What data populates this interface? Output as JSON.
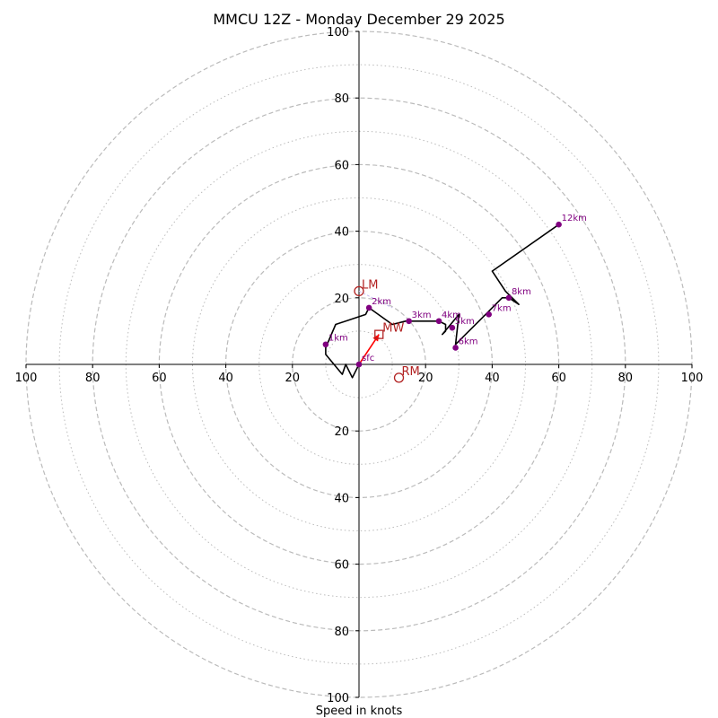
{
  "chart_data": {
    "type": "hodograph",
    "title": "MMCU 12Z - Monday December 29 2025",
    "xlabel": "Speed in knots",
    "ylabel": "",
    "xlim": [
      -100,
      100
    ],
    "ylim": [
      -100,
      100
    ],
    "rings": {
      "dashed": [
        20,
        40,
        60,
        80,
        100
      ],
      "dotted": [
        10,
        30,
        50,
        70,
        90
      ]
    },
    "x_tick_labels": [
      {
        "value": -100,
        "label": "100"
      },
      {
        "value": -80,
        "label": "80"
      },
      {
        "value": -60,
        "label": "60"
      },
      {
        "value": -40,
        "label": "40"
      },
      {
        "value": -20,
        "label": "20"
      },
      {
        "value": 20,
        "label": "20"
      },
      {
        "value": 40,
        "label": "40"
      },
      {
        "value": 60,
        "label": "60"
      },
      {
        "value": 80,
        "label": "80"
      },
      {
        "value": 100,
        "label": "100"
      }
    ],
    "y_tick_labels": [
      {
        "value": 100,
        "label": "100"
      },
      {
        "value": 80,
        "label": "80"
      },
      {
        "value": 60,
        "label": "60"
      },
      {
        "value": 40,
        "label": "40"
      },
      {
        "value": 20,
        "label": "20"
      },
      {
        "value": -20,
        "label": "20"
      },
      {
        "value": -40,
        "label": "40"
      },
      {
        "value": -60,
        "label": "60"
      },
      {
        "value": -80,
        "label": "80"
      },
      {
        "value": -100,
        "label": "100"
      }
    ],
    "hodograph_trace": [
      [
        0,
        0
      ],
      [
        -2,
        -4
      ],
      [
        -4,
        0
      ],
      [
        -5,
        -3
      ],
      [
        -10,
        3
      ],
      [
        -10,
        5
      ],
      [
        -7,
        12
      ],
      [
        2,
        15
      ],
      [
        3,
        17
      ],
      [
        10,
        12
      ],
      [
        14,
        13
      ],
      [
        24,
        13
      ],
      [
        26,
        12
      ],
      [
        26,
        10
      ],
      [
        25,
        9
      ],
      [
        30,
        15
      ],
      [
        29,
        6
      ],
      [
        38,
        15
      ],
      [
        43,
        20
      ],
      [
        45,
        20
      ],
      [
        48,
        18
      ],
      [
        44,
        22
      ],
      [
        40,
        28
      ],
      [
        60,
        42
      ]
    ],
    "height_markers": [
      {
        "label": "sfc",
        "u": 0,
        "v": 0
      },
      {
        "label": "1km",
        "u": -10,
        "v": 6
      },
      {
        "label": "2km",
        "u": 3,
        "v": 17
      },
      {
        "label": "3km",
        "u": 15,
        "v": 13
      },
      {
        "label": "4km",
        "u": 24,
        "v": 13
      },
      {
        "label": "5km",
        "u": 28,
        "v": 11
      },
      {
        "label": "6km",
        "u": 29,
        "v": 5
      },
      {
        "label": "7km",
        "u": 39,
        "v": 15
      },
      {
        "label": "8km",
        "u": 45,
        "v": 20
      },
      {
        "label": "12km",
        "u": 60,
        "v": 42
      }
    ],
    "storm_motion": {
      "LM": {
        "label": "LM",
        "u": 0,
        "v": 22
      },
      "RM": {
        "label": "RM",
        "u": 12,
        "v": -4
      },
      "MW": {
        "label": "MW",
        "u": 6,
        "v": 9
      }
    },
    "mean_wind_arrow": {
      "from": [
        0,
        0
      ],
      "to": [
        6,
        9
      ]
    },
    "lm_link_dashed": {
      "from": [
        0,
        22
      ],
      "to": [
        10,
        17
      ]
    },
    "colors": {
      "trace": "#000000",
      "markers": "#800080",
      "storm_motion": "#b22222",
      "arrow": "#ff0000",
      "rings": "#bbbbbb",
      "lm_link": "#c7b8f0"
    }
  }
}
